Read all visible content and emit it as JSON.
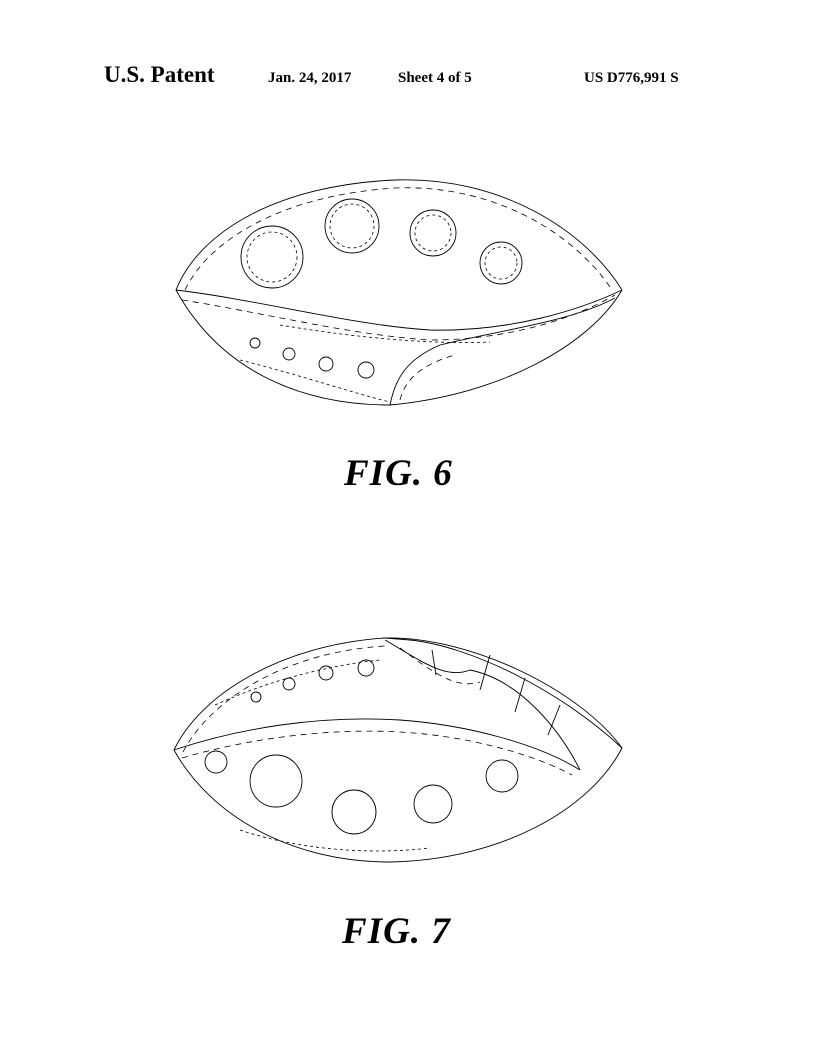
{
  "header": {
    "title": "U.S. Patent",
    "date": "Jan. 24, 2017",
    "sheet": "Sheet 4 of 5",
    "patent_number": "US D776,991 S"
  },
  "figures": [
    {
      "label": "FIG. 6"
    },
    {
      "label": "FIG. 7"
    }
  ]
}
